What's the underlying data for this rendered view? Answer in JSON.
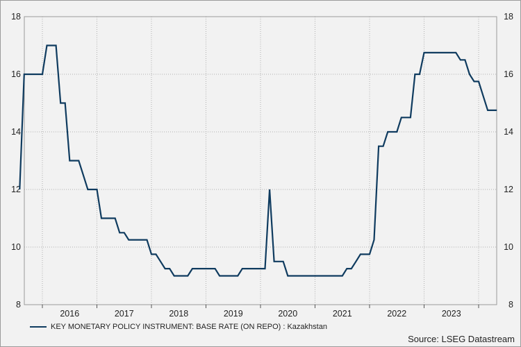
{
  "chart_data": {
    "type": "line",
    "title": "",
    "xlabel": "",
    "ylabel": "",
    "ylim": [
      8,
      18
    ],
    "yticks": [
      8,
      10,
      12,
      14,
      16,
      18
    ],
    "year_labels": [
      "2016",
      "2017",
      "2018",
      "2019",
      "2020",
      "2021",
      "2022",
      "2023"
    ],
    "grid": true,
    "legend_position": "bottom-left",
    "line_color": "#0f3b5f",
    "series": [
      {
        "name": "KEY MONETARY POLICY INSTRUMENT: BASE RATE (ON REPO) : Kazakhstan",
        "points": [
          [
            "2015-08",
            12.0
          ],
          [
            "2015-09",
            16.0
          ],
          [
            "2015-10",
            16.0
          ],
          [
            "2015-11",
            16.0
          ],
          [
            "2015-12",
            16.0
          ],
          [
            "2016-01",
            16.0
          ],
          [
            "2016-02",
            17.0
          ],
          [
            "2016-03",
            17.0
          ],
          [
            "2016-04",
            17.0
          ],
          [
            "2016-05",
            15.0
          ],
          [
            "2016-06",
            15.0
          ],
          [
            "2016-07",
            13.0
          ],
          [
            "2016-08",
            13.0
          ],
          [
            "2016-09",
            13.0
          ],
          [
            "2016-10",
            12.5
          ],
          [
            "2016-11",
            12.0
          ],
          [
            "2016-12",
            12.0
          ],
          [
            "2017-01",
            12.0
          ],
          [
            "2017-02",
            11.0
          ],
          [
            "2017-03",
            11.0
          ],
          [
            "2017-04",
            11.0
          ],
          [
            "2017-05",
            11.0
          ],
          [
            "2017-06",
            10.5
          ],
          [
            "2017-07",
            10.5
          ],
          [
            "2017-08",
            10.25
          ],
          [
            "2017-09",
            10.25
          ],
          [
            "2017-10",
            10.25
          ],
          [
            "2017-11",
            10.25
          ],
          [
            "2017-12",
            10.25
          ],
          [
            "2018-01",
            9.75
          ],
          [
            "2018-02",
            9.75
          ],
          [
            "2018-03",
            9.5
          ],
          [
            "2018-04",
            9.25
          ],
          [
            "2018-05",
            9.25
          ],
          [
            "2018-06",
            9.0
          ],
          [
            "2018-07",
            9.0
          ],
          [
            "2018-08",
            9.0
          ],
          [
            "2018-09",
            9.0
          ],
          [
            "2018-10",
            9.25
          ],
          [
            "2018-11",
            9.25
          ],
          [
            "2018-12",
            9.25
          ],
          [
            "2019-01",
            9.25
          ],
          [
            "2019-02",
            9.25
          ],
          [
            "2019-03",
            9.25
          ],
          [
            "2019-04",
            9.0
          ],
          [
            "2019-05",
            9.0
          ],
          [
            "2019-06",
            9.0
          ],
          [
            "2019-07",
            9.0
          ],
          [
            "2019-08",
            9.0
          ],
          [
            "2019-09",
            9.25
          ],
          [
            "2019-10",
            9.25
          ],
          [
            "2019-11",
            9.25
          ],
          [
            "2019-12",
            9.25
          ],
          [
            "2020-01",
            9.25
          ],
          [
            "2020-02",
            9.25
          ],
          [
            "2020-03",
            12.0
          ],
          [
            "2020-04",
            9.5
          ],
          [
            "2020-05",
            9.5
          ],
          [
            "2020-06",
            9.5
          ],
          [
            "2020-07",
            9.0
          ],
          [
            "2020-08",
            9.0
          ],
          [
            "2020-09",
            9.0
          ],
          [
            "2020-10",
            9.0
          ],
          [
            "2020-11",
            9.0
          ],
          [
            "2020-12",
            9.0
          ],
          [
            "2021-01",
            9.0
          ],
          [
            "2021-02",
            9.0
          ],
          [
            "2021-03",
            9.0
          ],
          [
            "2021-04",
            9.0
          ],
          [
            "2021-05",
            9.0
          ],
          [
            "2021-06",
            9.0
          ],
          [
            "2021-07",
            9.0
          ],
          [
            "2021-08",
            9.25
          ],
          [
            "2021-09",
            9.25
          ],
          [
            "2021-10",
            9.5
          ],
          [
            "2021-11",
            9.75
          ],
          [
            "2021-12",
            9.75
          ],
          [
            "2022-01",
            9.75
          ],
          [
            "2022-02",
            10.25
          ],
          [
            "2022-03",
            13.5
          ],
          [
            "2022-04",
            13.5
          ],
          [
            "2022-05",
            14.0
          ],
          [
            "2022-06",
            14.0
          ],
          [
            "2022-07",
            14.0
          ],
          [
            "2022-08",
            14.5
          ],
          [
            "2022-09",
            14.5
          ],
          [
            "2022-10",
            14.5
          ],
          [
            "2022-11",
            16.0
          ],
          [
            "2022-12",
            16.0
          ],
          [
            "2023-01",
            16.75
          ],
          [
            "2023-02",
            16.75
          ],
          [
            "2023-03",
            16.75
          ],
          [
            "2023-04",
            16.75
          ],
          [
            "2023-05",
            16.75
          ],
          [
            "2023-06",
            16.75
          ],
          [
            "2023-07",
            16.75
          ],
          [
            "2023-08",
            16.75
          ],
          [
            "2023-09",
            16.5
          ],
          [
            "2023-10",
            16.5
          ],
          [
            "2023-11",
            16.0
          ],
          [
            "2023-12",
            15.75
          ],
          [
            "2024-01",
            15.75
          ],
          [
            "2024-02",
            15.25
          ],
          [
            "2024-03",
            14.75
          ],
          [
            "2024-04",
            14.75
          ],
          [
            "2024-05",
            14.75
          ]
        ]
      }
    ]
  },
  "legend": {
    "label": "KEY MONETARY POLICY INSTRUMENT: BASE RATE (ON REPO) : Kazakhstan"
  },
  "source": "Source: LSEG Datastream"
}
